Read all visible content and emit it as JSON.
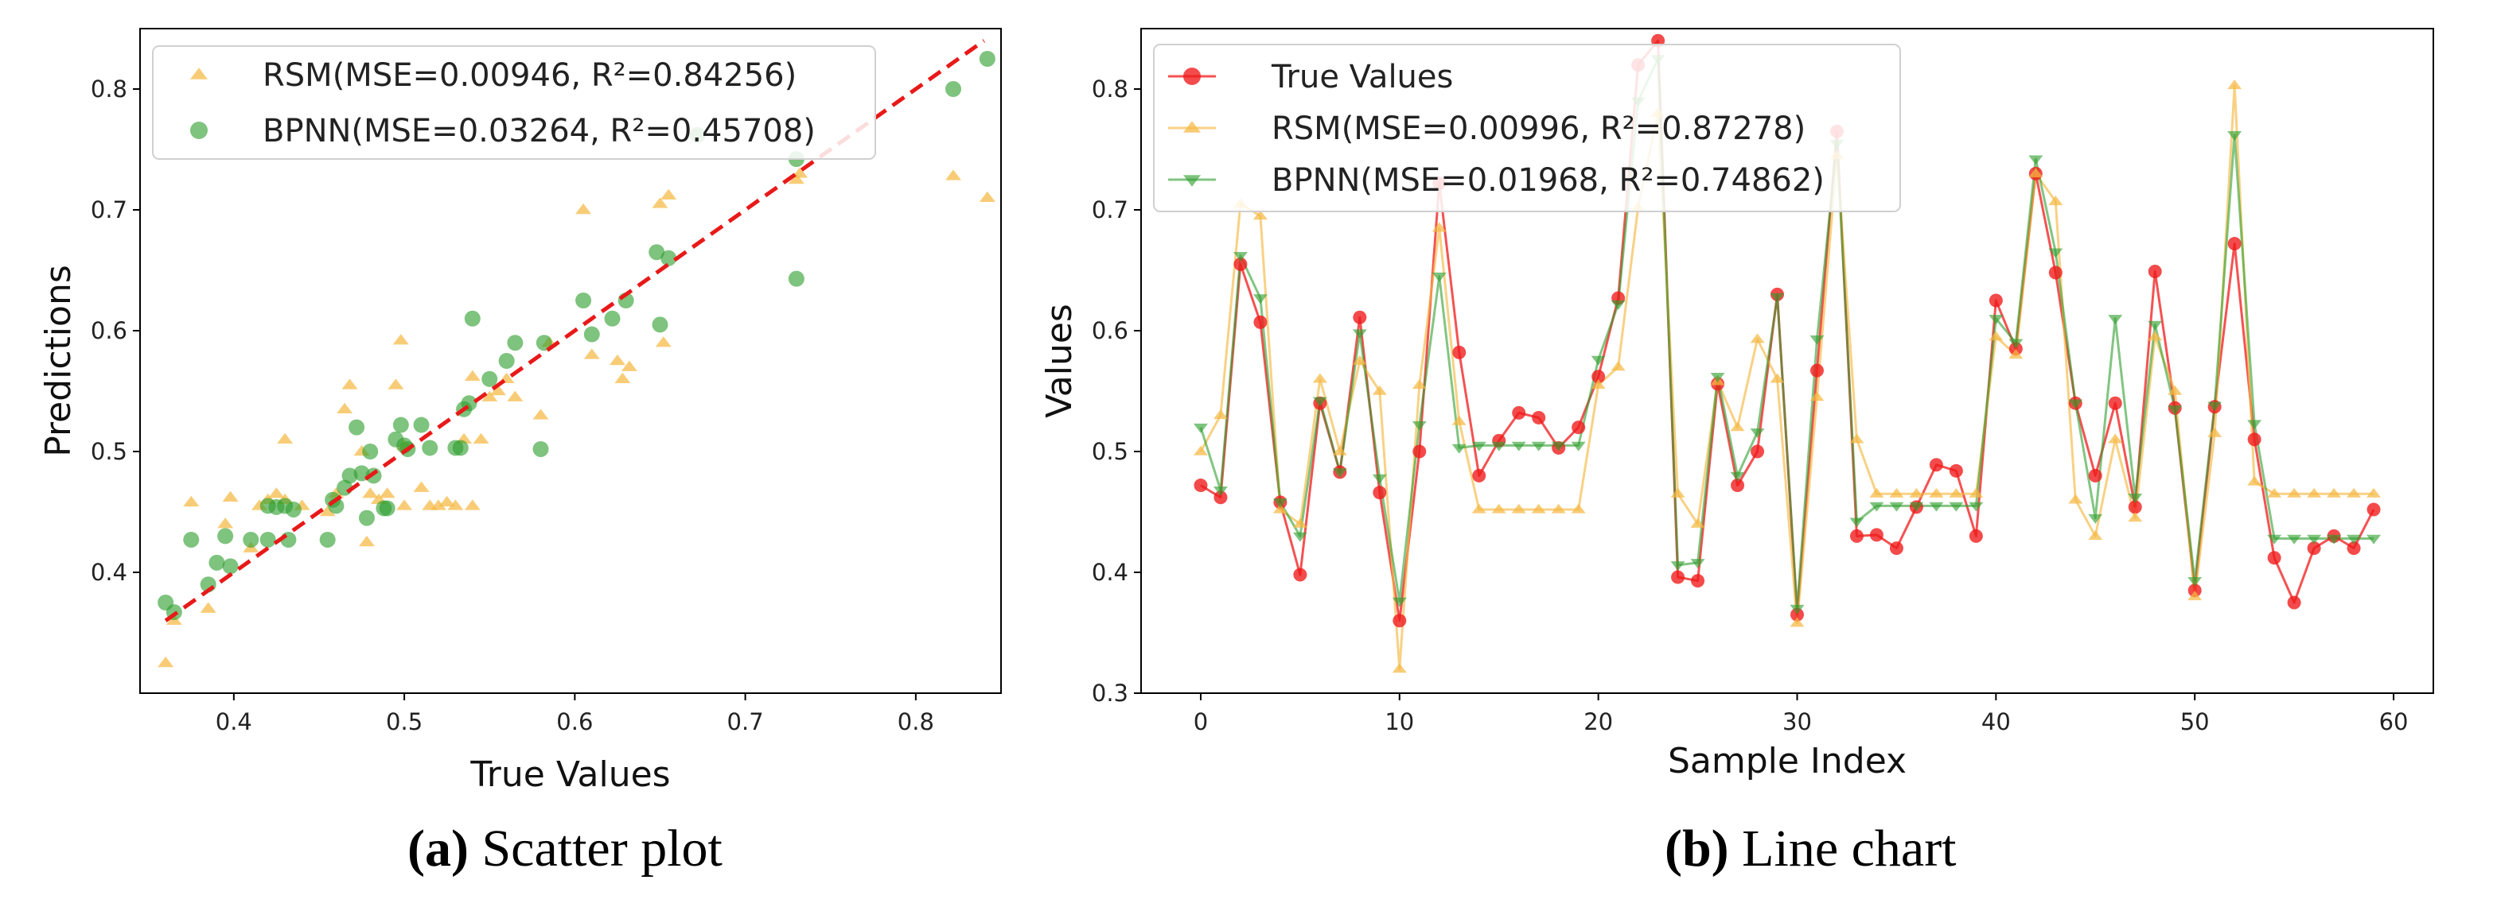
{
  "captions": {
    "a_label": "(a)",
    "a_text": "Scatter plot",
    "b_label": "(b)",
    "b_text": "Line chart"
  },
  "colors": {
    "rsm": "#f5b942",
    "bpnn": "#2e9e2e",
    "true": "#f01818",
    "fit": "#e81919"
  },
  "chart_data": [
    {
      "type": "scatter",
      "xlabel": "True Values",
      "ylabel": "Predictions",
      "xlim": [
        0.345,
        0.85
      ],
      "ylim": [
        0.3,
        0.85
      ],
      "xticks": [
        0.4,
        0.5,
        0.6,
        0.7,
        0.8
      ],
      "yticks": [
        0.4,
        0.5,
        0.6,
        0.7,
        0.8
      ],
      "legend_position": "upper-left",
      "reference_line": {
        "x": [
          0.36,
          0.84
        ],
        "y": [
          0.36,
          0.84
        ],
        "style": "dashed",
        "color": "#e81919"
      },
      "series": [
        {
          "name": "RSM(MSE=0.00946, R²=0.84256)",
          "marker": "triangle",
          "color": "#f5b942",
          "points": [
            [
              0.36,
              0.325
            ],
            [
              0.365,
              0.36
            ],
            [
              0.375,
              0.458
            ],
            [
              0.385,
              0.37
            ],
            [
              0.395,
              0.44
            ],
            [
              0.398,
              0.462
            ],
            [
              0.41,
              0.42
            ],
            [
              0.415,
              0.455
            ],
            [
              0.42,
              0.46
            ],
            [
              0.425,
              0.465
            ],
            [
              0.43,
              0.51
            ],
            [
              0.43,
              0.46
            ],
            [
              0.44,
              0.455
            ],
            [
              0.455,
              0.45
            ],
            [
              0.46,
              0.465
            ],
            [
              0.465,
              0.535
            ],
            [
              0.468,
              0.555
            ],
            [
              0.475,
              0.5
            ],
            [
              0.478,
              0.425
            ],
            [
              0.48,
              0.465
            ],
            [
              0.485,
              0.46
            ],
            [
              0.49,
              0.465
            ],
            [
              0.495,
              0.555
            ],
            [
              0.498,
              0.592
            ],
            [
              0.5,
              0.505
            ],
            [
              0.5,
              0.455
            ],
            [
              0.51,
              0.47
            ],
            [
              0.515,
              0.455
            ],
            [
              0.52,
              0.455
            ],
            [
              0.525,
              0.458
            ],
            [
              0.53,
              0.455
            ],
            [
              0.535,
              0.51
            ],
            [
              0.54,
              0.455
            ],
            [
              0.54,
              0.562
            ],
            [
              0.545,
              0.51
            ],
            [
              0.55,
              0.545
            ],
            [
              0.555,
              0.55
            ],
            [
              0.56,
              0.56
            ],
            [
              0.565,
              0.545
            ],
            [
              0.58,
              0.53
            ],
            [
              0.585,
              0.59
            ],
            [
              0.605,
              0.7
            ],
            [
              0.61,
              0.58
            ],
            [
              0.625,
              0.575
            ],
            [
              0.628,
              0.56
            ],
            [
              0.632,
              0.57
            ],
            [
              0.65,
              0.705
            ],
            [
              0.652,
              0.59
            ],
            [
              0.655,
              0.712
            ],
            [
              0.73,
              0.725
            ],
            [
              0.732,
              0.73
            ],
            [
              0.822,
              0.728
            ],
            [
              0.842,
              0.71
            ]
          ]
        },
        {
          "name": "BPNN(MSE=0.03264, R²=0.45708)",
          "marker": "circle",
          "color": "#2e9e2e",
          "points": [
            [
              0.36,
              0.375
            ],
            [
              0.365,
              0.367
            ],
            [
              0.375,
              0.427
            ],
            [
              0.385,
              0.39
            ],
            [
              0.39,
              0.408
            ],
            [
              0.395,
              0.43
            ],
            [
              0.398,
              0.405
            ],
            [
              0.41,
              0.427
            ],
            [
              0.42,
              0.455
            ],
            [
              0.42,
              0.427
            ],
            [
              0.425,
              0.454
            ],
            [
              0.43,
              0.455
            ],
            [
              0.432,
              0.427
            ],
            [
              0.435,
              0.452
            ],
            [
              0.455,
              0.427
            ],
            [
              0.458,
              0.46
            ],
            [
              0.46,
              0.455
            ],
            [
              0.465,
              0.47
            ],
            [
              0.468,
              0.48
            ],
            [
              0.472,
              0.52
            ],
            [
              0.475,
              0.482
            ],
            [
              0.478,
              0.445
            ],
            [
              0.48,
              0.5
            ],
            [
              0.482,
              0.48
            ],
            [
              0.488,
              0.453
            ],
            [
              0.49,
              0.453
            ],
            [
              0.495,
              0.51
            ],
            [
              0.498,
              0.522
            ],
            [
              0.5,
              0.505
            ],
            [
              0.502,
              0.502
            ],
            [
              0.51,
              0.522
            ],
            [
              0.515,
              0.503
            ],
            [
              0.53,
              0.503
            ],
            [
              0.533,
              0.503
            ],
            [
              0.535,
              0.535
            ],
            [
              0.538,
              0.54
            ],
            [
              0.54,
              0.61
            ],
            [
              0.55,
              0.56
            ],
            [
              0.56,
              0.575
            ],
            [
              0.565,
              0.59
            ],
            [
              0.58,
              0.502
            ],
            [
              0.582,
              0.59
            ],
            [
              0.605,
              0.625
            ],
            [
              0.61,
              0.597
            ],
            [
              0.622,
              0.61
            ],
            [
              0.63,
              0.625
            ],
            [
              0.648,
              0.665
            ],
            [
              0.65,
              0.605
            ],
            [
              0.655,
              0.66
            ],
            [
              0.672,
              0.762
            ],
            [
              0.73,
              0.643
            ],
            [
              0.73,
              0.742
            ],
            [
              0.822,
              0.8
            ],
            [
              0.842,
              0.825
            ]
          ]
        }
      ]
    },
    {
      "type": "line",
      "xlabel": "Sample Index",
      "ylabel": "Values",
      "xlim": [
        -3,
        62
      ],
      "ylim": [
        0.3,
        0.85
      ],
      "xticks": [
        0,
        10,
        20,
        30,
        40,
        50,
        60
      ],
      "yticks": [
        0.3,
        0.4,
        0.5,
        0.6,
        0.7,
        0.8
      ],
      "legend_position": "upper-left",
      "x": [
        0,
        1,
        2,
        3,
        4,
        5,
        6,
        7,
        8,
        9,
        10,
        11,
        12,
        13,
        14,
        15,
        16,
        17,
        18,
        19,
        20,
        21,
        22,
        23,
        24,
        25,
        26,
        27,
        28,
        29,
        30,
        31,
        32,
        33,
        34,
        35,
        36,
        37,
        38,
        39,
        40,
        41,
        42,
        43,
        44,
        45,
        46,
        47,
        48,
        49,
        50,
        51,
        52,
        53,
        54,
        55,
        56,
        57,
        58,
        59
      ],
      "series": [
        {
          "name": "True Values",
          "marker": "circle",
          "color": "#f01818",
          "values": [
            0.472,
            0.462,
            0.655,
            0.607,
            0.458,
            0.398,
            0.54,
            0.483,
            0.611,
            0.466,
            0.36,
            0.5,
            0.722,
            0.582,
            0.48,
            0.509,
            0.532,
            0.528,
            0.503,
            0.52,
            0.562,
            0.627,
            0.82,
            0.84,
            0.396,
            0.393,
            0.556,
            0.472,
            0.5,
            0.63,
            0.365,
            0.567,
            0.765,
            0.43,
            0.431,
            0.42,
            0.454,
            0.489,
            0.484,
            0.43,
            0.625,
            0.585,
            0.73,
            0.648,
            0.54,
            0.48,
            0.54,
            0.454,
            0.649,
            0.536,
            0.385,
            0.537,
            0.672,
            0.51,
            0.412,
            0.375,
            0.42,
            0.43,
            0.42,
            0.452
          ]
        },
        {
          "name": "RSM(MSE=0.00996, R²=0.87278)",
          "marker": "triangle-up",
          "color": "#f5b942",
          "values": [
            0.5,
            0.53,
            0.705,
            0.695,
            0.452,
            0.44,
            0.56,
            0.5,
            0.575,
            0.55,
            0.32,
            0.555,
            0.685,
            0.525,
            0.452,
            0.452,
            0.452,
            0.452,
            0.452,
            0.452,
            0.555,
            0.57,
            0.702,
            0.78,
            0.465,
            0.44,
            0.558,
            0.52,
            0.593,
            0.56,
            0.358,
            0.545,
            0.745,
            0.51,
            0.465,
            0.465,
            0.465,
            0.465,
            0.465,
            0.465,
            0.595,
            0.58,
            0.73,
            0.707,
            0.46,
            0.43,
            0.51,
            0.445,
            0.595,
            0.55,
            0.38,
            0.515,
            0.803,
            0.475,
            0.465,
            0.465,
            0.465,
            0.465,
            0.465,
            0.465
          ]
        },
        {
          "name": "BPNN(MSE=0.01968, R²=0.74862)",
          "marker": "triangle-down",
          "color": "#2e9e2e",
          "values": [
            0.52,
            0.468,
            0.662,
            0.627,
            0.458,
            0.43,
            0.542,
            0.483,
            0.598,
            0.478,
            0.376,
            0.522,
            0.645,
            0.503,
            0.505,
            0.505,
            0.505,
            0.505,
            0.505,
            0.505,
            0.576,
            0.622,
            0.79,
            0.825,
            0.406,
            0.408,
            0.562,
            0.48,
            0.516,
            0.628,
            0.37,
            0.593,
            0.755,
            0.442,
            0.455,
            0.455,
            0.455,
            0.455,
            0.455,
            0.455,
            0.61,
            0.59,
            0.742,
            0.665,
            0.54,
            0.445,
            0.61,
            0.462,
            0.605,
            0.535,
            0.393,
            0.538,
            0.762,
            0.523,
            0.428,
            0.428,
            0.428,
            0.428,
            0.428,
            0.428
          ]
        }
      ]
    }
  ]
}
